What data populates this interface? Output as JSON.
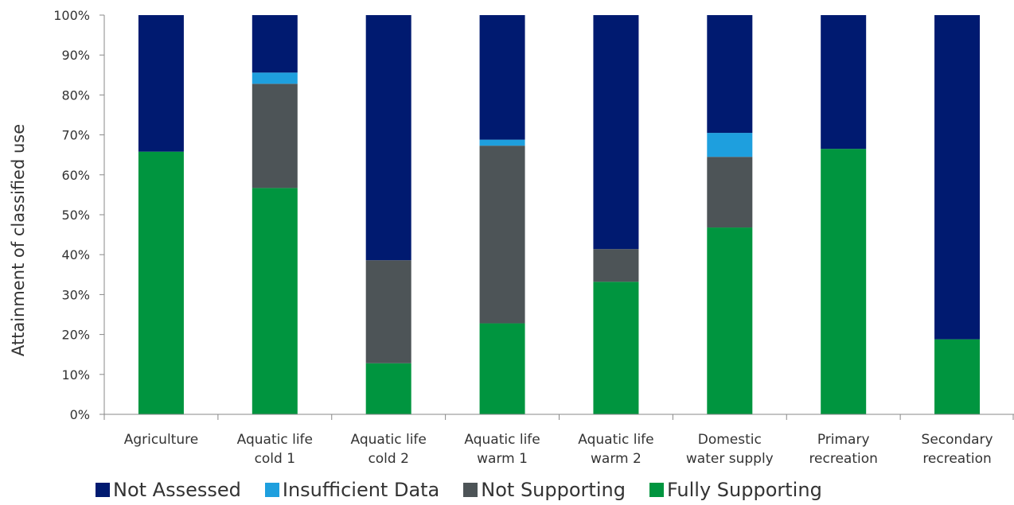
{
  "chart_data": {
    "type": "bar",
    "stacked": true,
    "percent": true,
    "title": "",
    "xlabel": "",
    "ylabel": "Attainment  of classified use",
    "ylim": [
      0,
      100
    ],
    "yticks": [
      "0%",
      "10%",
      "20%",
      "30%",
      "40%",
      "50%",
      "60%",
      "70%",
      "80%",
      "90%",
      "100%"
    ],
    "grid": false,
    "legend_position": "bottom",
    "categories": [
      [
        "Agriculture"
      ],
      [
        "Aquatic life",
        "cold 1"
      ],
      [
        "Aquatic life",
        "cold 2"
      ],
      [
        "Aquatic life",
        "warm 1"
      ],
      [
        "Aquatic life",
        "warm 2"
      ],
      [
        "Domestic",
        "water supply"
      ],
      [
        "Primary",
        "recreation"
      ],
      [
        "Secondary",
        "recreation"
      ]
    ],
    "series": [
      {
        "name": "Fully Supporting",
        "color": "#00953F",
        "values": [
          65.8,
          56.7,
          12.8,
          22.8,
          33.2,
          46.8,
          66.5,
          18.8
        ]
      },
      {
        "name": "Not Supporting",
        "color": "#4D5457",
        "values": [
          0,
          26.1,
          25.8,
          44.5,
          8.2,
          17.7,
          0,
          0
        ]
      },
      {
        "name": "Insufficient Data",
        "color": "#1E9FDE",
        "values": [
          0,
          2.8,
          0,
          1.5,
          0,
          6.0,
          0,
          0
        ]
      },
      {
        "name": "Not Assessed",
        "color": "#001A70",
        "values": [
          34.2,
          14.4,
          61.4,
          31.2,
          58.6,
          29.5,
          33.5,
          81.2
        ]
      }
    ],
    "legend_order": [
      "Not Assessed",
      "Insufficient Data",
      "Not Supporting",
      "Fully Supporting"
    ]
  }
}
